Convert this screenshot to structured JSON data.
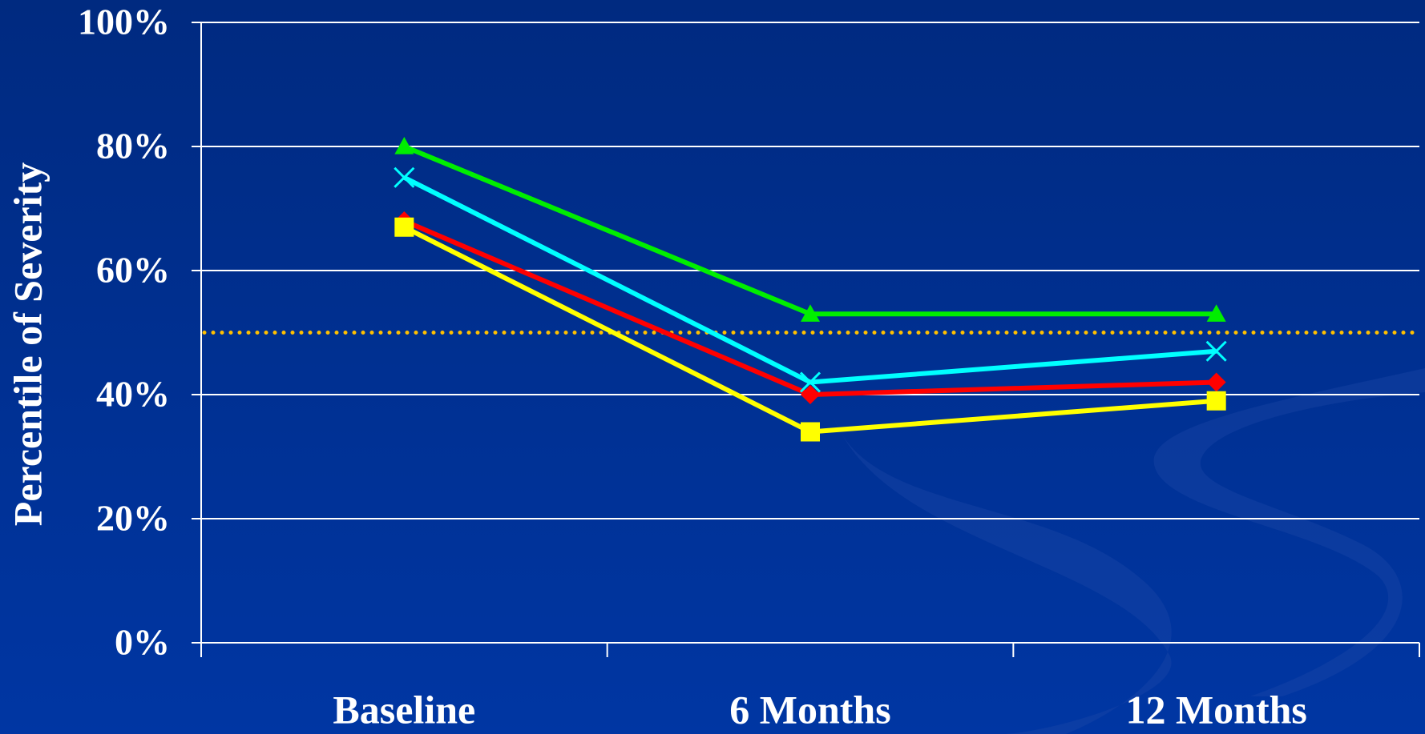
{
  "chart_data": {
    "type": "line",
    "y_label": "Percentile of Severity",
    "categories": [
      "Baseline",
      "6 Months",
      "12 Months"
    ],
    "series": [
      {
        "color": "#00ee00",
        "marker": "triangle",
        "values": [
          80,
          53,
          53
        ]
      },
      {
        "color": "#00ffff",
        "marker": "x",
        "values": [
          75,
          42,
          47
        ]
      },
      {
        "color": "#ff0000",
        "marker": "diamond",
        "values": [
          68,
          40,
          42
        ]
      },
      {
        "color": "#ffff00",
        "marker": "square",
        "values": [
          67,
          34,
          39
        ]
      }
    ],
    "reference_line": {
      "value": 50,
      "color": "#ffc000",
      "style": "dotted"
    },
    "ylim": [
      0,
      100
    ],
    "yticks": [
      {
        "value": 0,
        "label": "0%"
      },
      {
        "value": 20,
        "label": "20%"
      },
      {
        "value": 40,
        "label": "40%"
      },
      {
        "value": 60,
        "label": "60%"
      },
      {
        "value": 80,
        "label": "80%"
      },
      {
        "value": 100,
        "label": "100%"
      }
    ],
    "grid": true
  }
}
